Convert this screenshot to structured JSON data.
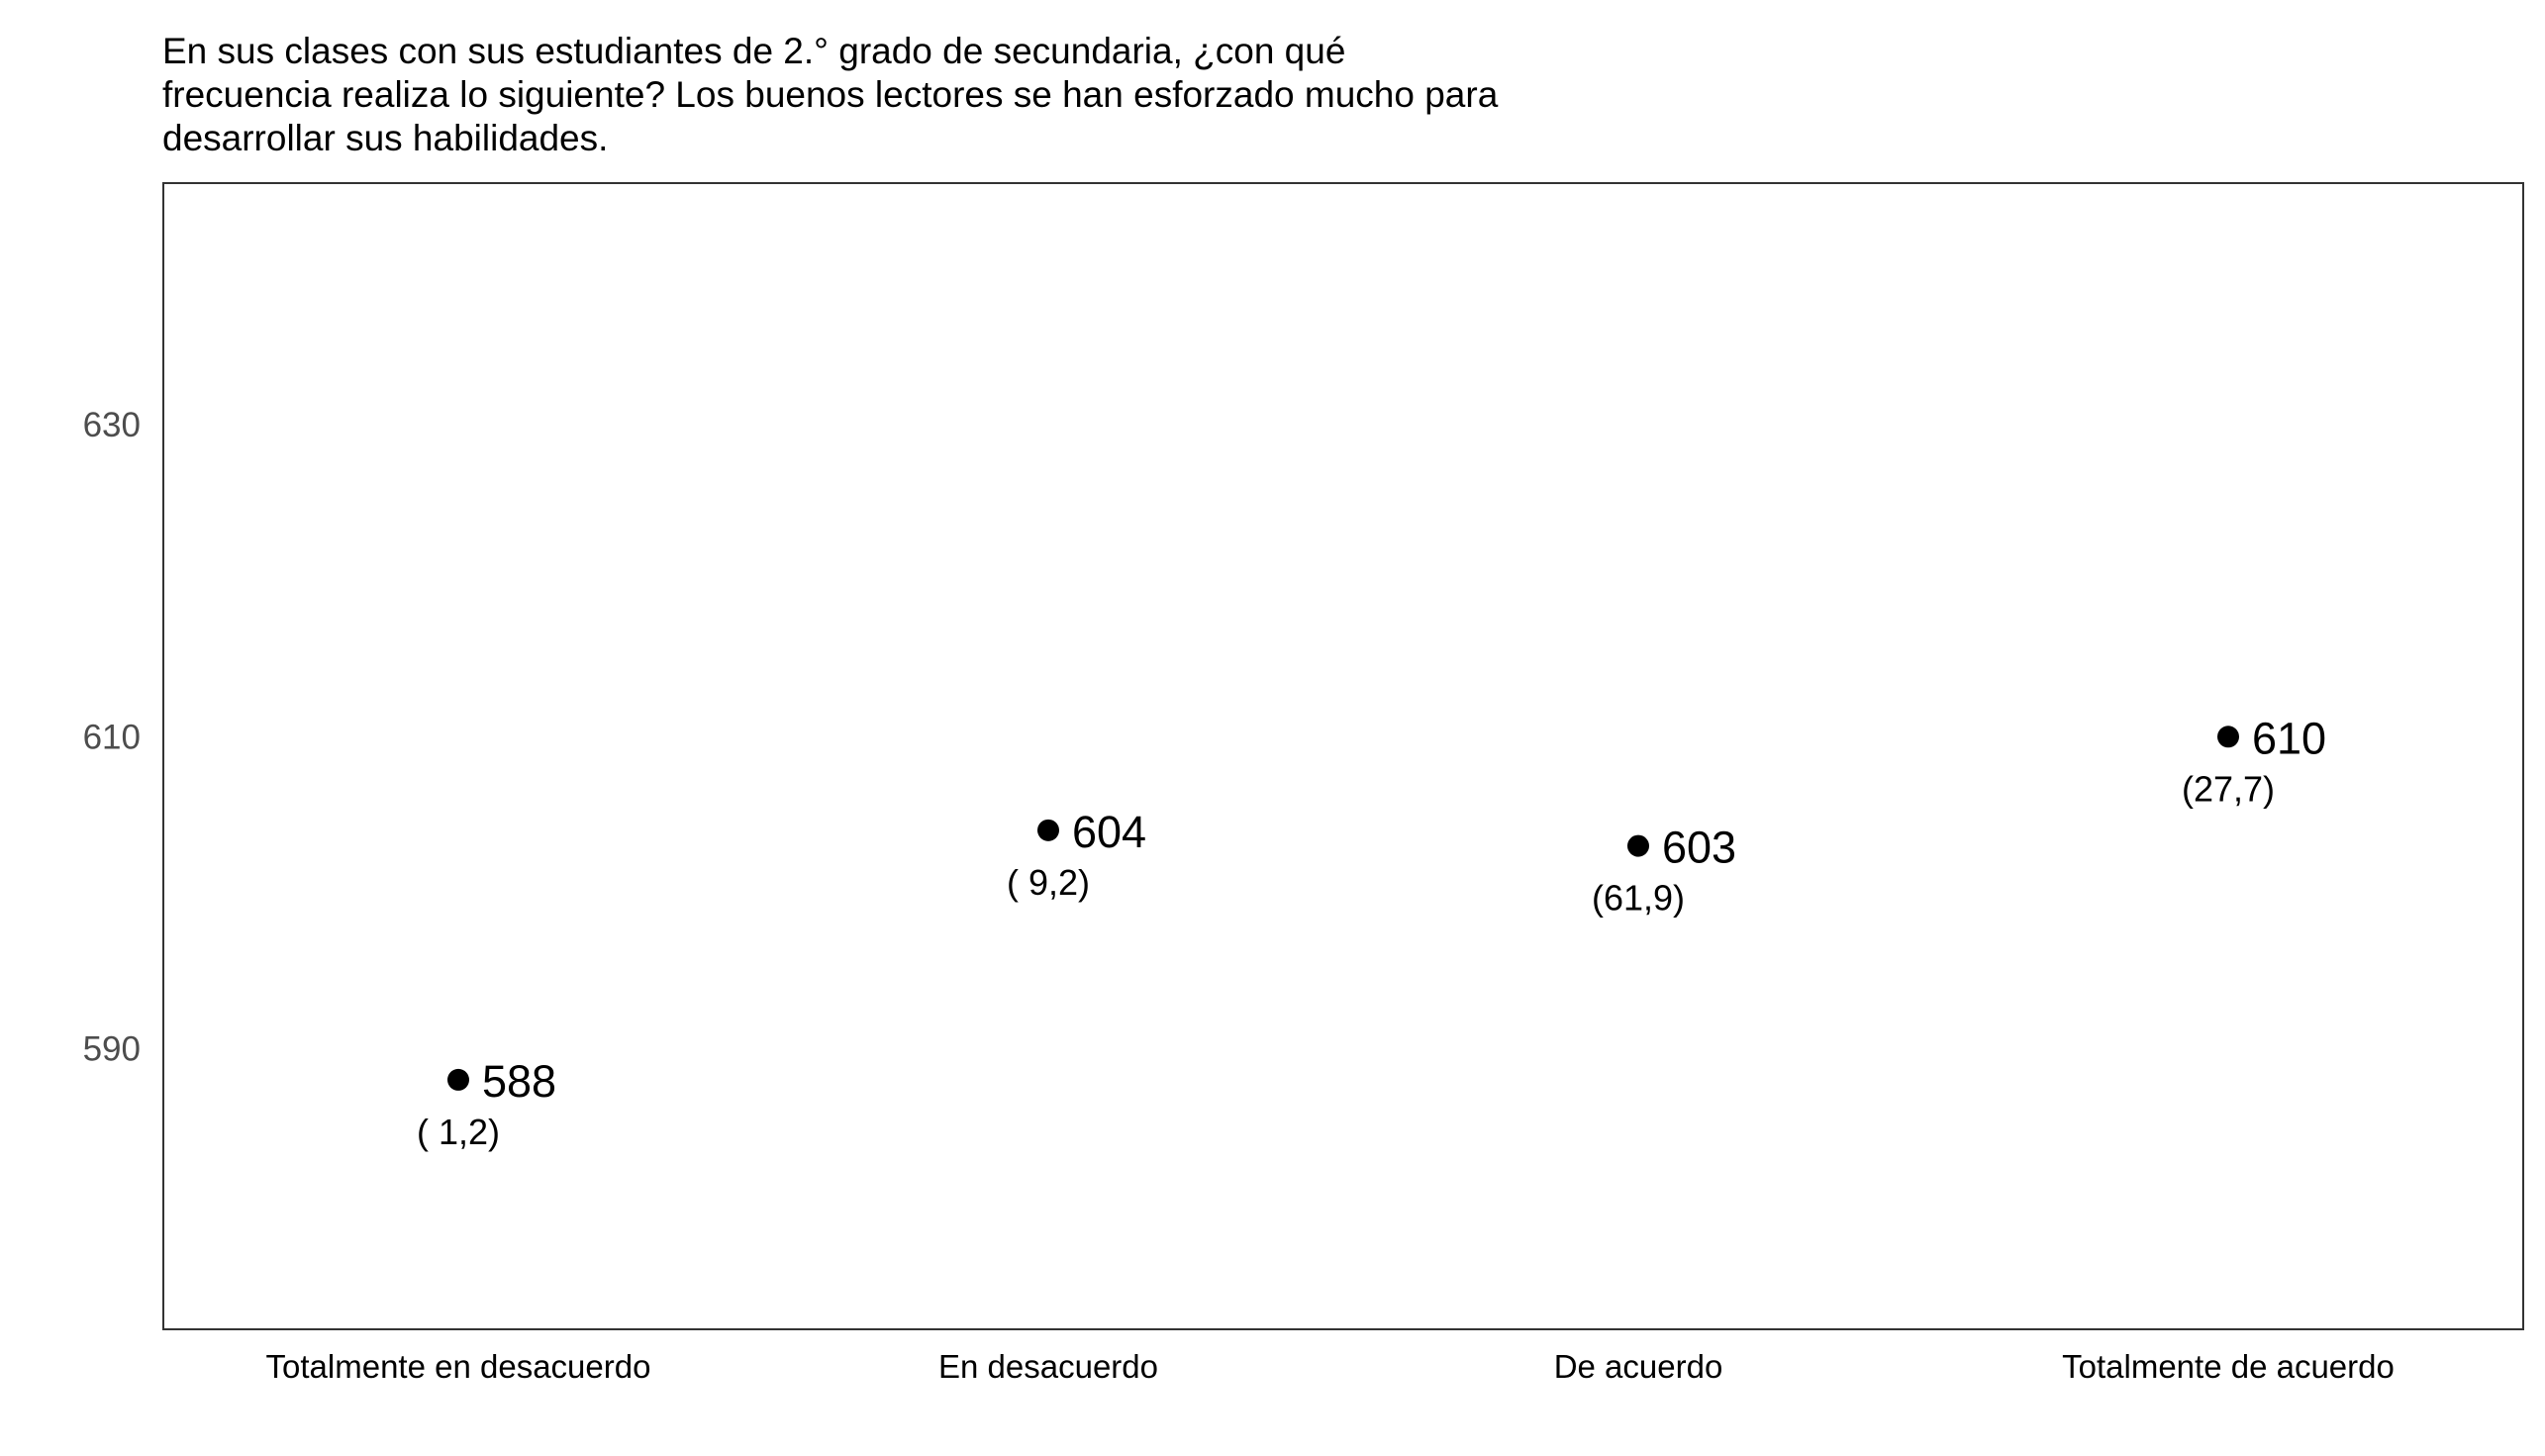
{
  "chart_data": {
    "type": "scatter",
    "title_lines": [
      "En sus clases con sus estudiantes de 2.° grado de secundaria, ¿con qué",
      "frecuencia realiza lo siguiente? Los buenos lectores se han esforzado mucho para",
      "desarrollar sus habilidades."
    ],
    "categories": [
      "Totalmente en desacuerdo",
      "En desacuerdo",
      "De acuerdo",
      "Totalmente de acuerdo"
    ],
    "values": [
      588,
      604,
      603,
      610
    ],
    "value_labels": [
      "588",
      "604",
      "603",
      "610"
    ],
    "percent_labels": [
      "( 1,2)",
      "( 9,2)",
      "(61,9)",
      "(27,7)"
    ],
    "yticks": [
      590,
      610,
      630
    ],
    "ytick_labels": [
      "590",
      "610",
      "630"
    ],
    "ylim": [
      572,
      645.5
    ],
    "xlabel": "",
    "ylabel": "",
    "grid": false,
    "point_color": "#000000",
    "text_color": "#000000",
    "tick_color": "#4d4d4d"
  }
}
